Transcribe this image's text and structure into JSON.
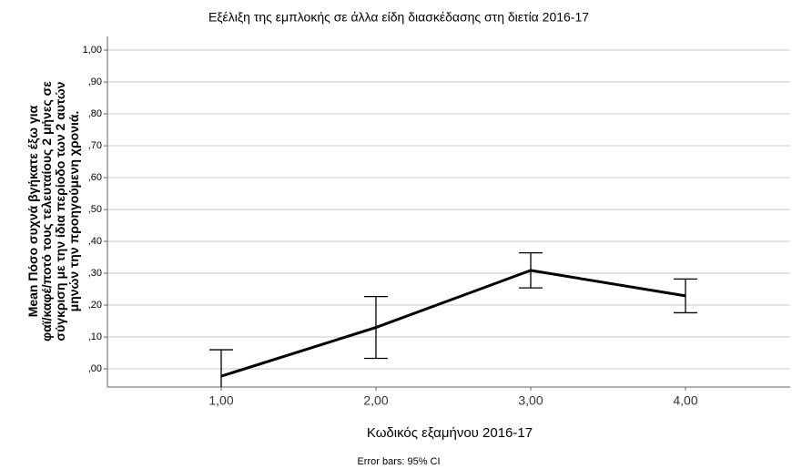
{
  "chart_data": {
    "type": "line",
    "title": "Εξέλιξη της εμπλοκής σε άλλα είδη διασκέδασης στη διετία 2016-17",
    "x_label": "Κωδικός εξαμήνου 2016-17",
    "y_label": [
      "Mean Πόσο συχνά βγήκατε έξω για",
      "φαϊ/καφέ/ποτό τους τελευταίους 2 μήνες σε",
      "σύγκριση με την ίδια περίοδο των 2 αυτών",
      "μηνών την προηγούμενη χρονιά."
    ],
    "note": "Error bars: 95% CI",
    "categories": [
      "1,00",
      "2,00",
      "3,00",
      "4,00"
    ],
    "values": [
      -0.023,
      0.13,
      0.309,
      0.229
    ],
    "errors": [
      0.083,
      0.097,
      0.055,
      0.053
    ],
    "color": "#000000",
    "ylim": [
      -0.057,
      1.043
    ],
    "yticks": [
      {
        "value": 0,
        "label": ",00"
      },
      {
        "value": 0.1,
        "label": ",10"
      },
      {
        "value": 0.2,
        "label": ",20"
      },
      {
        "value": 0.3,
        "label": ",30"
      },
      {
        "value": 0.4,
        "label": ",40"
      },
      {
        "value": 0.5,
        "label": ",50"
      },
      {
        "value": 0.6,
        "label": ",60"
      },
      {
        "value": 0.7,
        "label": ",70"
      },
      {
        "value": 0.8,
        "label": ",80"
      },
      {
        "value": 0.9,
        "label": ",90"
      },
      {
        "value": 1,
        "label": "1,00"
      }
    ],
    "grid": true
  }
}
